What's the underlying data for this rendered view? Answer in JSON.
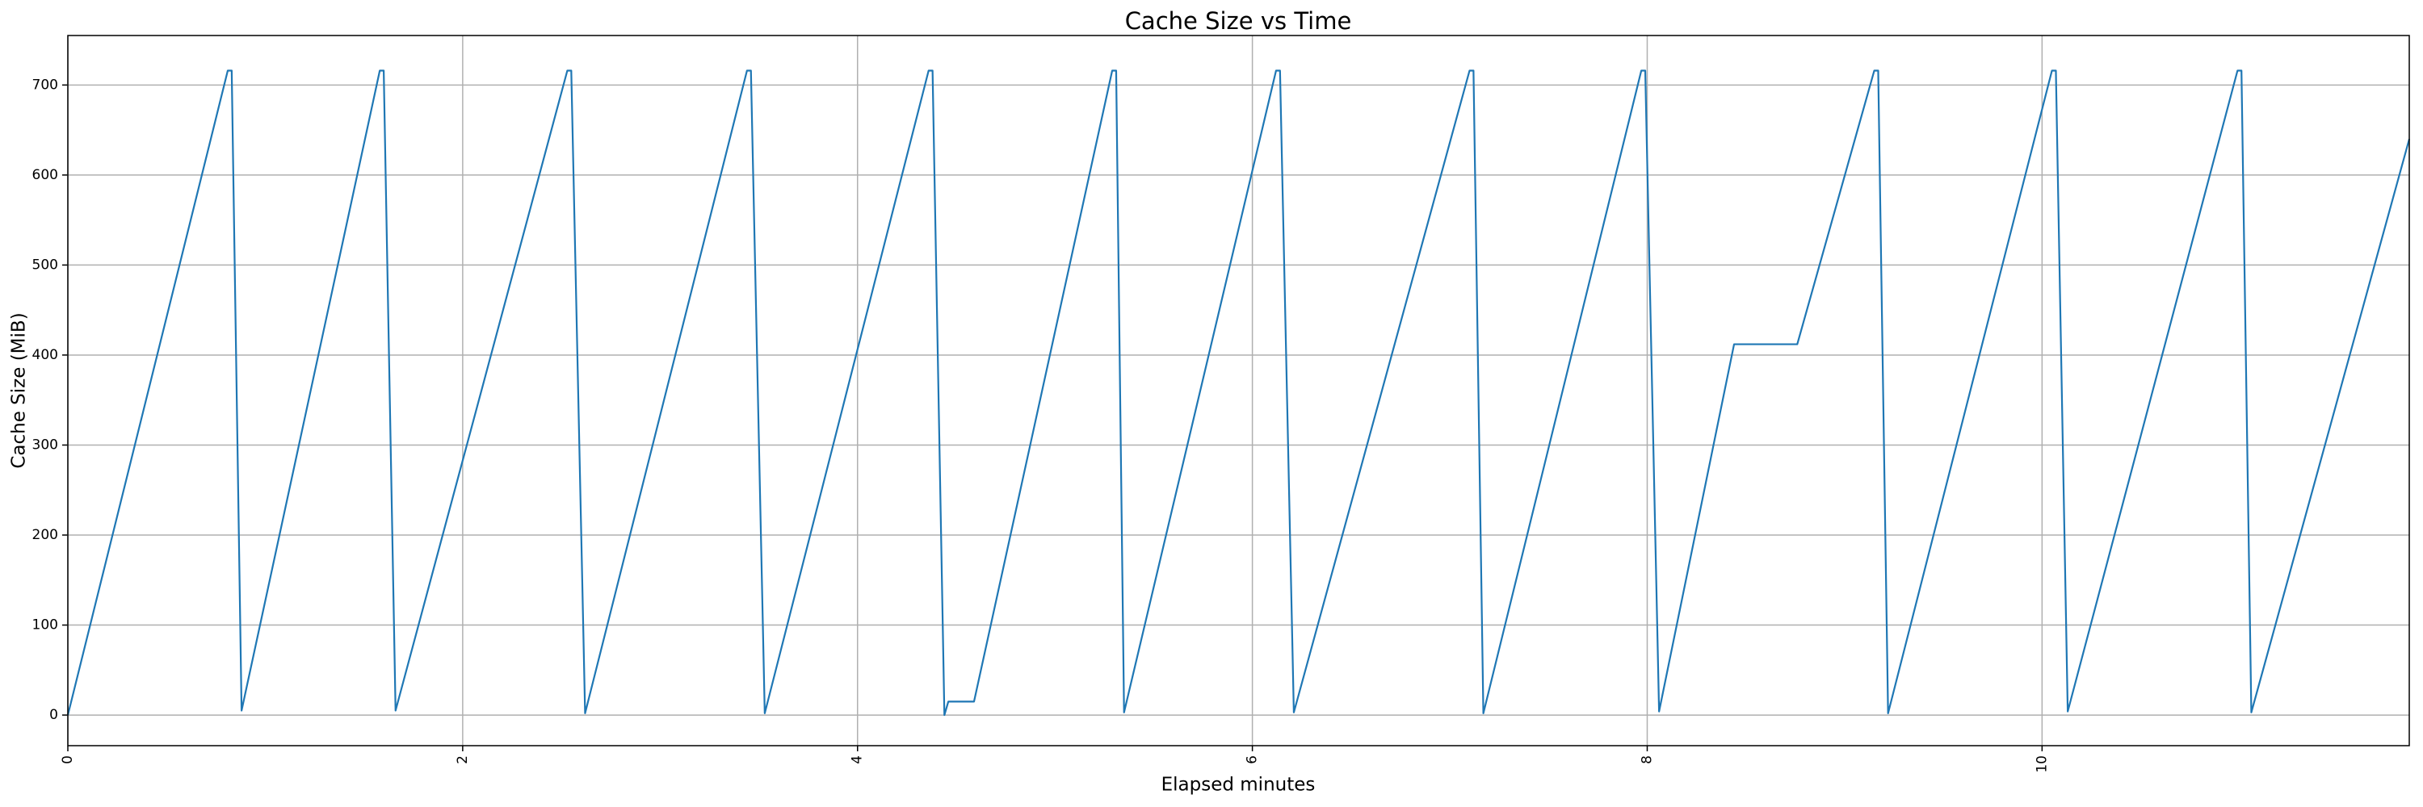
{
  "chart_data": {
    "type": "line",
    "title": "Cache Size vs Time",
    "xlabel": "Elapsed minutes",
    "ylabel": "Cache Size (MiB)",
    "x": [
      0,
      0.81,
      0.83,
      0.88,
      1.58,
      1.6,
      1.66,
      2.53,
      2.55,
      2.62,
      3.44,
      3.46,
      3.53,
      4.36,
      4.38,
      4.44,
      4.46,
      4.59,
      5.29,
      5.31,
      5.35,
      6.12,
      6.14,
      6.21,
      7.1,
      7.12,
      7.17,
      7.97,
      7.99,
      8.06,
      8.44,
      8.76,
      9.15,
      9.17,
      9.22,
      10.05,
      10.07,
      10.13,
      10.99,
      11.01,
      11.06,
      11.86
    ],
    "values": [
      0,
      716,
      716,
      5,
      716,
      716,
      5,
      716,
      716,
      2,
      716,
      716,
      2,
      716,
      716,
      0,
      15,
      15,
      716,
      716,
      3,
      716,
      716,
      3,
      716,
      716,
      2,
      716,
      716,
      4,
      412,
      412,
      716,
      716,
      2,
      716,
      716,
      4,
      716,
      716,
      3,
      640
    ],
    "color": "#1f77b4",
    "xlim": [
      0,
      11.86
    ],
    "ylim": [
      -34,
      755
    ],
    "xticks": [
      0,
      2,
      4,
      6,
      8,
      10
    ],
    "yticks": [
      0,
      100,
      200,
      300,
      400,
      500,
      600,
      700
    ],
    "grid": true
  }
}
